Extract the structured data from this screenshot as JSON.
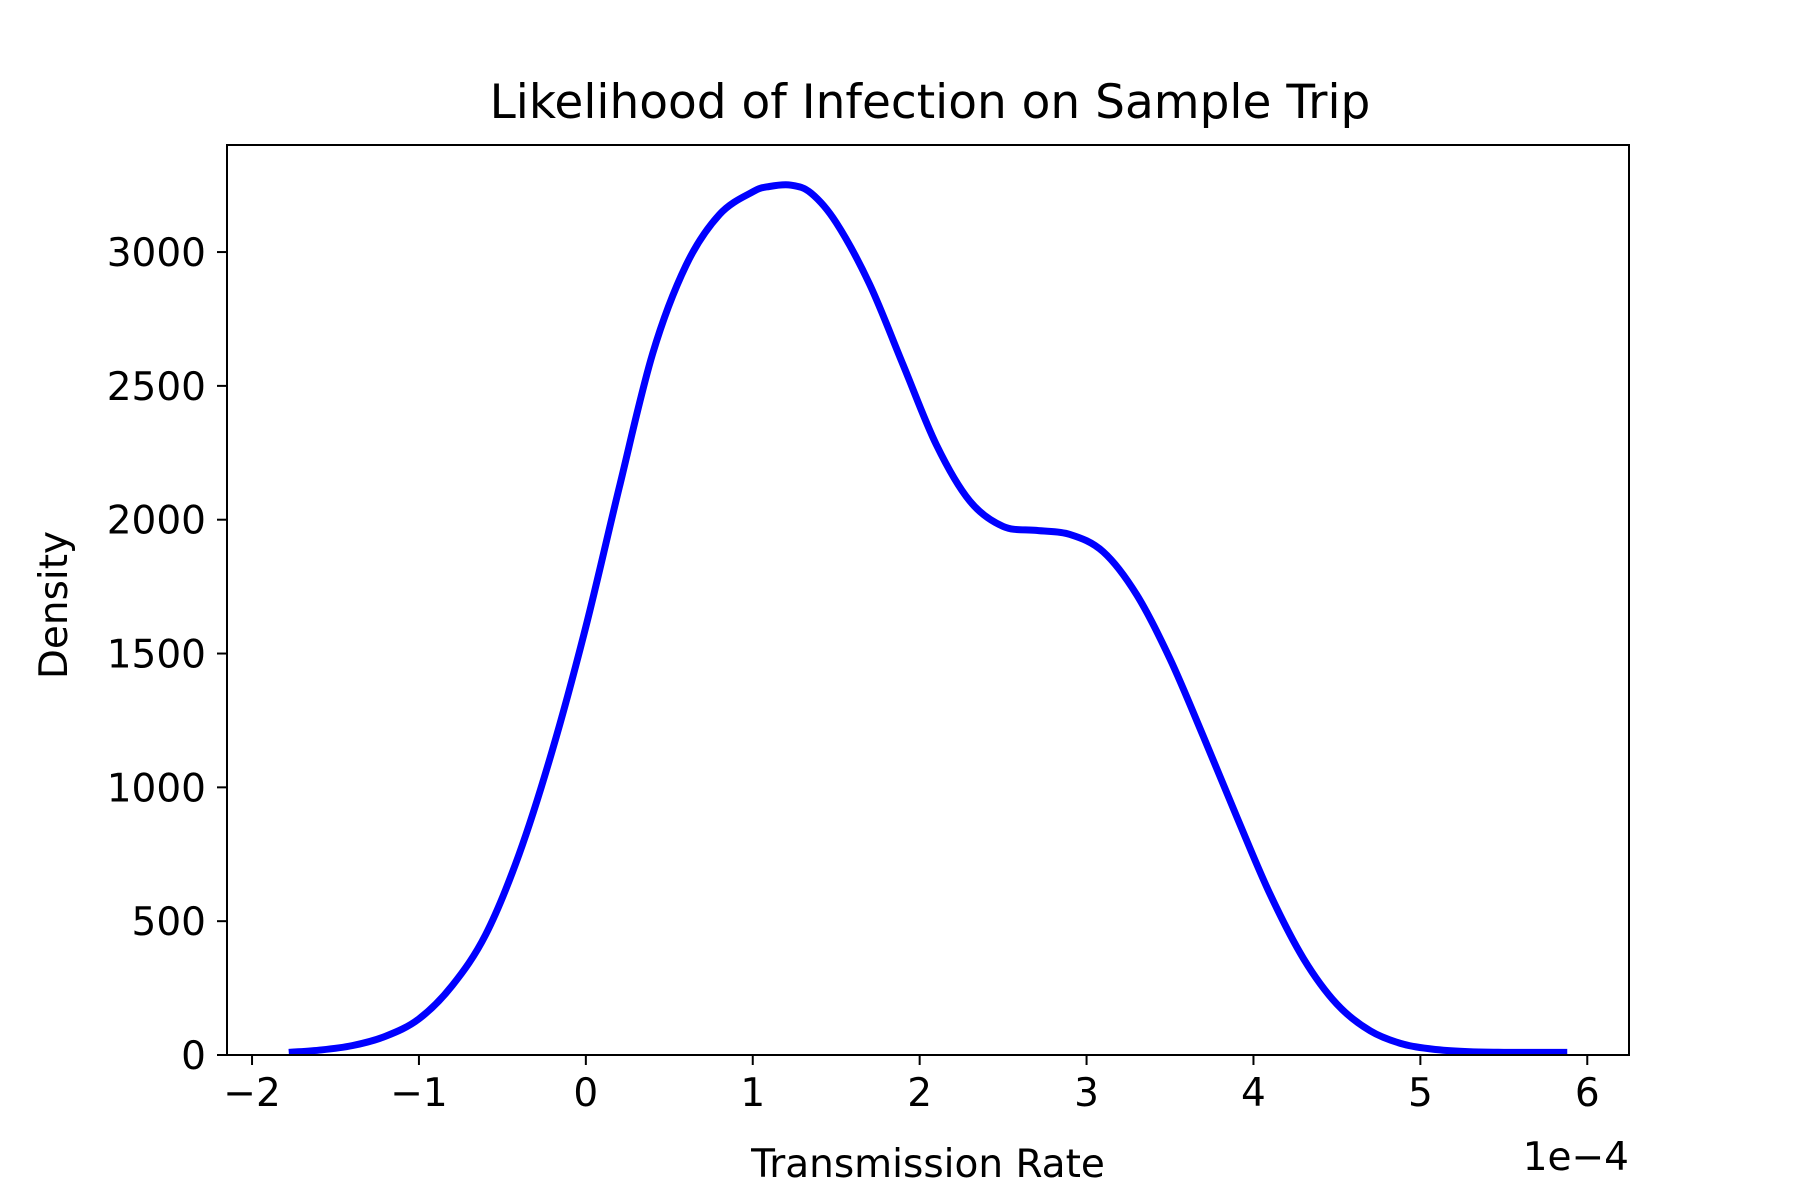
{
  "chart_data": {
    "type": "line",
    "title": "Likelihood of Infection on Sample Trip",
    "xlabel": "Transmission Rate",
    "ylabel": "Density",
    "x_offset_label": "1e−4",
    "xlim": [
      -2.15,
      6.25
    ],
    "ylim": [
      0,
      3400
    ],
    "x_ticks": [
      -2,
      -1,
      0,
      1,
      2,
      3,
      4,
      5,
      6
    ],
    "x_tick_labels": [
      "−2",
      "−1",
      "0",
      "1",
      "2",
      "3",
      "4",
      "5",
      "6"
    ],
    "y_ticks": [
      0,
      500,
      1000,
      1500,
      2000,
      2500,
      3000
    ],
    "y_tick_labels": [
      "0",
      "500",
      "1000",
      "1500",
      "2000",
      "2500",
      "3000"
    ],
    "grid": false,
    "legend": "none",
    "line_color": "#0000ff",
    "series": [
      {
        "x": [
          -1.78,
          -1.6,
          -1.4,
          -1.2,
          -1.0,
          -0.8,
          -0.6,
          -0.4,
          -0.2,
          0.0,
          0.2,
          0.4,
          0.6,
          0.8,
          1.0,
          1.1,
          1.23,
          1.35,
          1.5,
          1.7,
          1.9,
          2.1,
          2.3,
          2.5,
          2.7,
          2.9,
          3.1,
          3.3,
          3.5,
          3.7,
          3.9,
          4.1,
          4.3,
          4.5,
          4.7,
          4.9,
          5.1,
          5.3,
          5.5,
          5.7,
          5.88
        ],
        "y": [
          10,
          18,
          35,
          70,
          135,
          260,
          450,
          750,
          1140,
          1600,
          2120,
          2620,
          2950,
          3140,
          3225,
          3245,
          3250,
          3220,
          3110,
          2880,
          2580,
          2280,
          2070,
          1975,
          1960,
          1945,
          1880,
          1720,
          1480,
          1190,
          890,
          600,
          360,
          190,
          90,
          40,
          20,
          12,
          10,
          10,
          10
        ]
      }
    ]
  }
}
